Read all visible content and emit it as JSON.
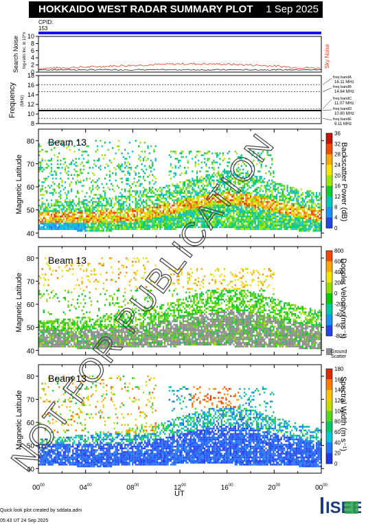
{
  "header": {
    "title": "HOKKAIDO WEST RADAR SUMMARY PLOT",
    "date": "1 Sep 2025",
    "cpid_label": "CPID:",
    "cpid_value": "153"
  },
  "colors": {
    "title_bg": "#000000",
    "cpid_bar": "#1010ff",
    "noise_red": "#e0401a",
    "watermark": "#404040"
  },
  "watermark": "NOT FOR PUBLICATION",
  "noise_panel": {
    "ylabel": "Search Noise",
    "ylabel_sub": "log-ratio Inc. in 10^x",
    "right_label": "Sky Noise",
    "ticks": [
      "10",
      "8",
      "6",
      "4",
      "2",
      "0"
    ]
  },
  "freq_panel": {
    "ylabel": "Frequency",
    "ylabel_sub": "(MHz)",
    "ticks": [
      "18",
      "16",
      "14",
      "12",
      "10",
      "8"
    ],
    "bands": [
      {
        "label": "freq bandA",
        "freq": "16.11 MHz"
      },
      {
        "label": "freq bandB",
        "freq": "14.64 MHz"
      },
      {
        "label": "freq bandC",
        "freq": "11.07 MHz"
      },
      {
        "label": "freq bandD",
        "freq": "10.80 MHz"
      },
      {
        "label": "freq bandE",
        "freq": "9.11 MHz"
      }
    ]
  },
  "panels": [
    {
      "beam": "Beam 13",
      "ylabel": "Magnetic Latitude",
      "ticks": [
        "80",
        "70",
        "60",
        "50",
        "40"
      ],
      "cb_label": "Backscatter Power (dB)",
      "cb_ticks": [
        "36",
        "32",
        "28",
        "24",
        "20",
        "16",
        "12",
        "8",
        "4",
        "0"
      ]
    },
    {
      "beam": "Beam 13",
      "ylabel": "Magnetic Latitude",
      "ticks": [
        "80",
        "70",
        "60",
        "50",
        "40"
      ],
      "cb_label": "Doppler Velocity (m s⁻¹)",
      "cb_ticks": [
        "800",
        "600",
        "400",
        "200",
        "0",
        "-200",
        "-400",
        "-600",
        "-800"
      ],
      "gs_label": "Ground",
      "gs_label2": "Scatter"
    },
    {
      "beam": "Beam 13",
      "ylabel": "Magnetic Latitude",
      "ticks": [
        "80",
        "70",
        "60",
        "50",
        "40"
      ],
      "cb_label": "Spectral Width (m s⁻¹)",
      "cb_ticks": [
        "180",
        "160",
        "140",
        "120",
        "100",
        "80",
        "60",
        "40",
        "20",
        "0"
      ]
    }
  ],
  "xaxis": {
    "title": "UT",
    "ticks": [
      "00",
      "04",
      "08",
      "12",
      "16",
      "20",
      "00"
    ],
    "tick_sup": "00"
  },
  "footer": {
    "line1": "Quick look plot created by sddata.adm",
    "line2": "05:43 UT 24 Sep 2025"
  },
  "logo": {
    "text": "ISEE"
  },
  "chart_data": [
    {
      "type": "line",
      "title": "Search Noise",
      "xlabel": "",
      "ylabel": "Search Noise",
      "x": [
        0,
        2,
        4,
        6,
        8,
        10,
        12,
        14,
        16,
        18,
        20,
        22,
        24
      ],
      "series": [
        {
          "name": "Sky Noise",
          "values": [
            1.0,
            1.2,
            1.4,
            1.7,
            1.9,
            2.1,
            2.3,
            2.3,
            2.2,
            2.0,
            1.7,
            1.3,
            1.1
          ]
        }
      ],
      "ylim": [
        0,
        10
      ]
    },
    {
      "type": "line",
      "title": "Frequency",
      "xlabel": "",
      "ylabel": "Frequency (MHz)",
      "x": [
        0,
        24
      ],
      "series": [
        {
          "name": "freq",
          "values": [
            10.8,
            10.8
          ]
        }
      ],
      "ylim": [
        8,
        18
      ]
    },
    {
      "type": "heatmap",
      "title": "Beam 13",
      "xlabel": "UT",
      "ylabel": "Magnetic Latitude",
      "xlim": [
        0,
        24
      ],
      "ylim": [
        38,
        85
      ],
      "colorbar": "Backscatter Power (dB)",
      "clim": [
        0,
        36
      ]
    },
    {
      "type": "heatmap",
      "title": "Beam 13",
      "xlabel": "UT",
      "ylabel": "Magnetic Latitude",
      "xlim": [
        0,
        24
      ],
      "ylim": [
        38,
        85
      ],
      "colorbar": "Doppler Velocity (m s⁻¹)",
      "clim": [
        -800,
        800
      ]
    },
    {
      "type": "heatmap",
      "title": "Beam 13",
      "xlabel": "UT",
      "ylabel": "Magnetic Latitude",
      "xlim": [
        0,
        24
      ],
      "ylim": [
        38,
        85
      ],
      "colorbar": "Spectral Width (m s⁻¹)",
      "clim": [
        0,
        180
      ]
    }
  ]
}
